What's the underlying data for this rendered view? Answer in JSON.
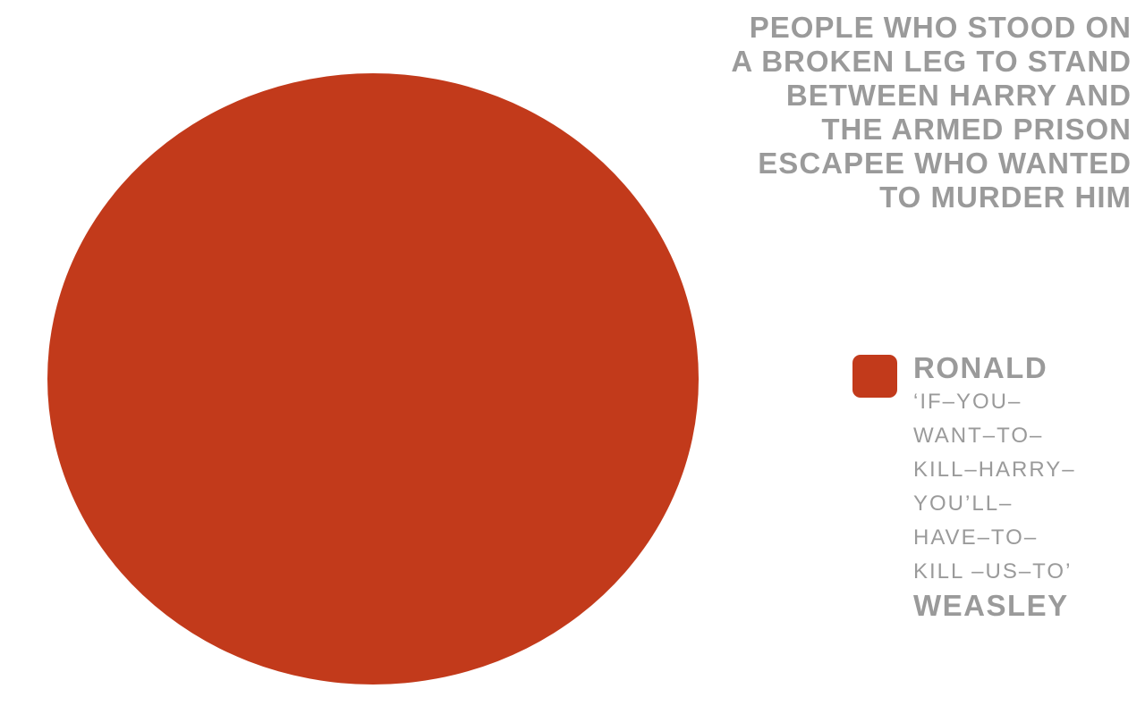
{
  "colors": {
    "slice": "#c23a1b",
    "text_gray": "#9a9a9a",
    "background": "#ffffff"
  },
  "title": {
    "full": "PEOPLE WHO STOOD ON A BROKEN LEG TO STAND BETWEEN HARRY AND THE ARMED PRISON ESCAPEE WHO WANTED TO MURDER HIM",
    "lines": [
      "PEOPLE WHO STOOD ON",
      "A BROKEN LEG TO STAND",
      "BETWEEN HARRY AND",
      "THE ARMED PRISON",
      "ESCAPEE WHO WANTED",
      "TO MURDER HIM"
    ]
  },
  "legend": {
    "swatch_color": "#c23a1b",
    "name_first": "RONALD",
    "quote_lines": [
      "‘IF–YOU–",
      "WANT–TO–",
      "KILL–HARRY–",
      "YOU’LL–",
      "HAVE–TO–",
      "KILL –US–TO’"
    ],
    "name_last": "WEASLEY",
    "full_label": "RONALD ‘IF–YOU–WANT–TO–KILL–HARRY–YOU’LL–HAVE–TO–KILL –US–TO’ WEASLEY"
  },
  "chart_data": {
    "type": "pie",
    "title": "PEOPLE WHO STOOD ON A BROKEN LEG TO STAND BETWEEN HARRY AND THE ARMED PRISON ESCAPEE WHO WANTED TO MURDER HIM",
    "slices": [
      {
        "label": "RONALD ‘IF–YOU–WANT–TO–KILL–HARRY–YOU’LL–HAVE–TO–KILL –US–TO’ WEASLEY",
        "value": 100,
        "percent": 100,
        "color": "#c23a1b"
      }
    ],
    "legend_position": "right",
    "title_position": "top-right",
    "background": "#ffffff"
  }
}
